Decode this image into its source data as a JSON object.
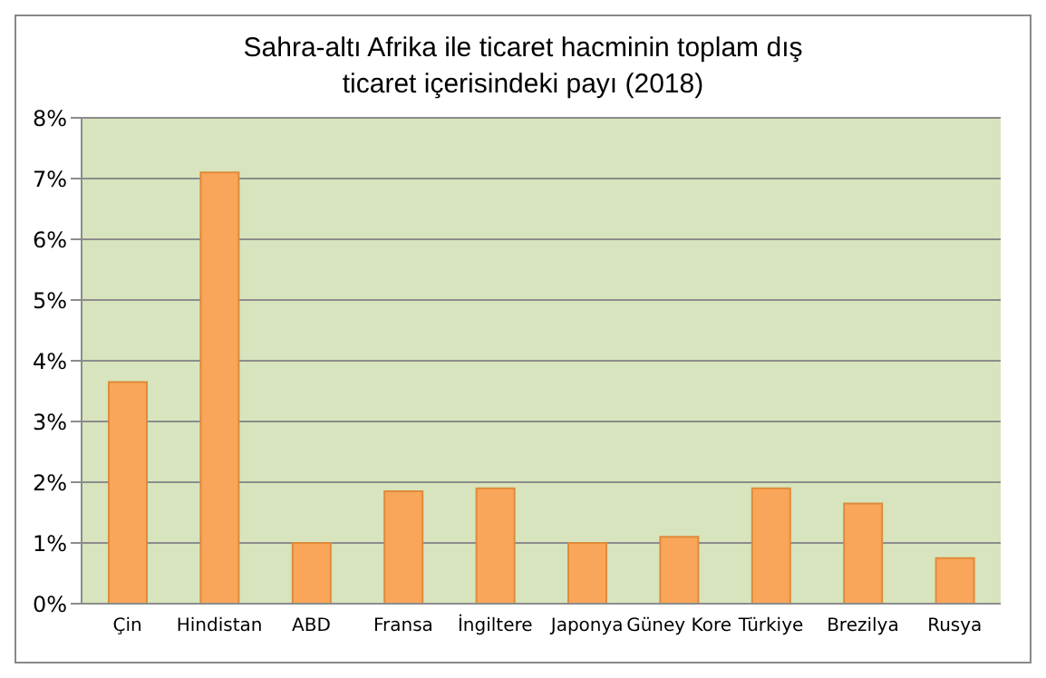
{
  "chart_data": {
    "type": "bar",
    "title": "Sahra-altı Afrika ile ticaret hacminin toplam dış ticaret içerisindeki payı (2018)",
    "categories": [
      "Çin",
      "Hindistan",
      "ABD",
      "Fransa",
      "İngiltere",
      "Japonya",
      "Güney Kore",
      "Türkiye",
      "Brezilya",
      "Rusya"
    ],
    "values": [
      3.65,
      7.1,
      1.0,
      1.85,
      1.9,
      1.0,
      1.1,
      1.9,
      1.65,
      0.75
    ],
    "color": "#f9a65a",
    "ylim": [
      0,
      8
    ],
    "yticks": [
      {
        "value": 0,
        "label": "0%"
      },
      {
        "value": 1,
        "label": "1%"
      },
      {
        "value": 2,
        "label": "2%"
      },
      {
        "value": 3,
        "label": "3%"
      },
      {
        "value": 4,
        "label": "4%"
      },
      {
        "value": 5,
        "label": "5%"
      },
      {
        "value": 6,
        "label": "6%"
      },
      {
        "value": 7,
        "label": "7%"
      },
      {
        "value": 8,
        "label": "8%"
      }
    ],
    "grid": "y"
  }
}
